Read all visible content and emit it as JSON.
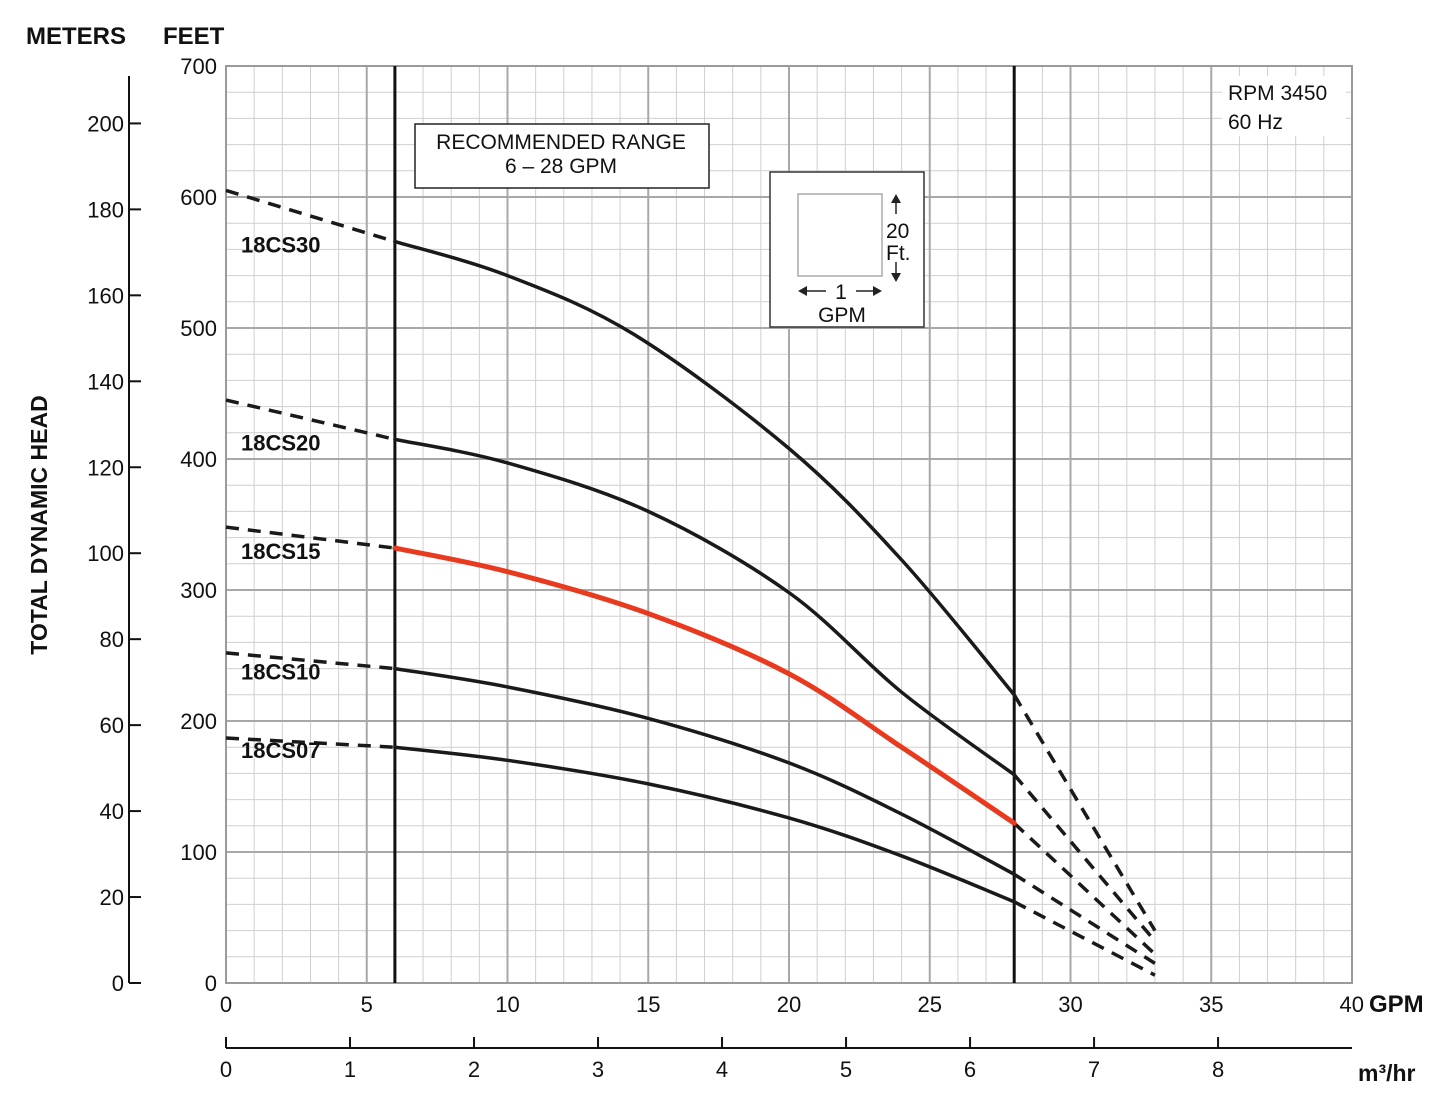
{
  "chart_data": {
    "type": "line",
    "units_header": {
      "meters": "METERS",
      "feet": "FEET"
    },
    "ylabel": "TOTAL DYNAMIC HEAD",
    "xlabel_gpm": "GPM",
    "xlabel_m3hr": "m³/hr",
    "x_gpm": {
      "range": [
        0,
        40
      ],
      "ticks": [
        0,
        5,
        10,
        15,
        20,
        25,
        30,
        35,
        40
      ],
      "minor_step": 1
    },
    "x_m3hr": {
      "range": [
        0,
        9.08
      ],
      "ticks": [
        0,
        1,
        2,
        3,
        4,
        5,
        6,
        7,
        8
      ]
    },
    "y_feet": {
      "range": [
        0,
        700
      ],
      "ticks": [
        0,
        100,
        200,
        300,
        400,
        500,
        600,
        700
      ],
      "minor_step": 20
    },
    "y_meters": {
      "range": [
        0,
        213.36
      ],
      "ticks": [
        0,
        20,
        40,
        60,
        80,
        100,
        120,
        140,
        160,
        180,
        200
      ]
    },
    "grid": true,
    "recommended_range": {
      "label_line1": "RECOMMENDED RANGE",
      "label_line2": "6 – 28 GPM",
      "min_gpm": 6,
      "max_gpm": 28
    },
    "speed_note": {
      "line1": "RPM 3450",
      "line2": "60 Hz"
    },
    "scale_key": {
      "vertical_line1": "20",
      "vertical_line2": "Ft.",
      "horizontal_value": "1",
      "horizontal_unit": "GPM"
    },
    "series": [
      {
        "name": "18CS30",
        "color": "#1a1a1a",
        "highlight": false,
        "dash_left": [
          [
            0,
            605
          ],
          [
            6,
            566
          ]
        ],
        "solid": [
          [
            6,
            566
          ],
          [
            10,
            540
          ],
          [
            14.5,
            495
          ],
          [
            20,
            408
          ],
          [
            24,
            323
          ],
          [
            28,
            220
          ]
        ],
        "dash_right": [
          [
            28,
            220
          ],
          [
            33,
            40
          ]
        ]
      },
      {
        "name": "18CS20",
        "color": "#1a1a1a",
        "highlight": false,
        "dash_left": [
          [
            0,
            445
          ],
          [
            6,
            415
          ]
        ],
        "solid": [
          [
            6,
            415
          ],
          [
            10,
            397
          ],
          [
            15,
            360
          ],
          [
            20,
            298
          ],
          [
            24,
            222
          ],
          [
            28,
            159
          ]
        ],
        "dash_right": [
          [
            28,
            159
          ],
          [
            33,
            32
          ]
        ]
      },
      {
        "name": "18CS15",
        "color": "#e83a1f",
        "highlight": true,
        "dash_left": [
          [
            0,
            348
          ],
          [
            6,
            332
          ]
        ],
        "solid": [
          [
            6,
            332
          ],
          [
            10,
            314
          ],
          [
            15,
            282
          ],
          [
            20,
            236
          ],
          [
            24,
            180
          ],
          [
            28,
            122
          ]
        ],
        "dash_right": [
          [
            28,
            122
          ],
          [
            33,
            22
          ]
        ]
      },
      {
        "name": "18CS10",
        "color": "#1a1a1a",
        "highlight": false,
        "dash_left": [
          [
            0,
            252
          ],
          [
            6,
            240
          ]
        ],
        "solid": [
          [
            6,
            240
          ],
          [
            10,
            226
          ],
          [
            15,
            202
          ],
          [
            20,
            168
          ],
          [
            24,
            129
          ],
          [
            28,
            83
          ]
        ],
        "dash_right": [
          [
            28,
            83
          ],
          [
            33,
            15
          ]
        ]
      },
      {
        "name": "18CS07",
        "color": "#1a1a1a",
        "highlight": false,
        "dash_left": [
          [
            0,
            187
          ],
          [
            6,
            180
          ]
        ],
        "solid": [
          [
            6,
            180
          ],
          [
            10,
            170
          ],
          [
            15,
            152
          ],
          [
            20,
            126
          ],
          [
            24,
            97
          ],
          [
            28,
            62
          ]
        ],
        "dash_right": [
          [
            28,
            62
          ],
          [
            33,
            6
          ]
        ]
      }
    ]
  }
}
